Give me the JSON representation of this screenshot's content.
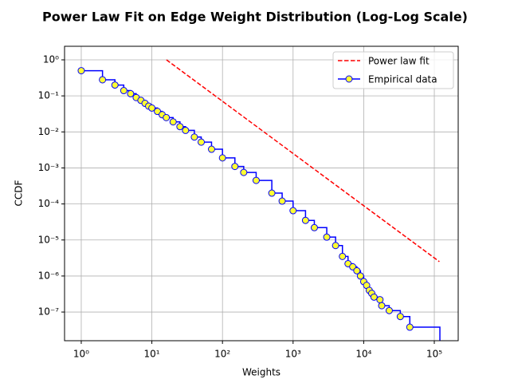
{
  "chart_data": {
    "type": "line",
    "title": "Power Law Fit on Edge Weight Distribution (Log-Log Scale)",
    "x_label": "Weights",
    "y_label": "CCDF",
    "xscale": "log",
    "yscale": "log",
    "grid": true,
    "legend_loc": "upper right",
    "xlim": [
      0.58,
      218000
    ],
    "ylim": [
      1.6e-08,
      2.38
    ],
    "xticks": [
      {
        "value": 1,
        "label": "10⁰"
      },
      {
        "value": 10,
        "label": "10¹"
      },
      {
        "value": 100,
        "label": "10²"
      },
      {
        "value": 1000,
        "label": "10³"
      },
      {
        "value": 10000,
        "label": "10⁴"
      },
      {
        "value": 100000,
        "label": "10⁵"
      }
    ],
    "yticks": [
      {
        "value": 1,
        "label": "10⁰"
      },
      {
        "value": 0.1,
        "label": "10⁻¹"
      },
      {
        "value": 0.01,
        "label": "10⁻²"
      },
      {
        "value": 0.001,
        "label": "10⁻³"
      },
      {
        "value": 0.0001,
        "label": "10⁻⁴"
      },
      {
        "value": 1e-05,
        "label": "10⁻⁵"
      },
      {
        "value": 1e-06,
        "label": "10⁻⁶"
      },
      {
        "value": 1e-07,
        "label": "10⁻⁷"
      }
    ],
    "series": [
      {
        "name": "Power law fit",
        "color": "#ff0000",
        "style": "dashed",
        "x": [
          16.1,
          118000
        ],
        "values": [
          1,
          2.5e-06
        ]
      },
      {
        "name": "Empirical data",
        "color": "#0000ff",
        "marker_color": "#ffff33",
        "style": "steps",
        "marker": true,
        "x": [
          1,
          2,
          3,
          4,
          5,
          6,
          7,
          8,
          9,
          10,
          12,
          14,
          16,
          20,
          25,
          30,
          40,
          50,
          70,
          100,
          150,
          200,
          300,
          500,
          700,
          1000,
          1500,
          2000,
          3000,
          4000,
          5000,
          6000,
          7000,
          8000,
          9000,
          10000,
          11000,
          12000,
          13000,
          14000,
          17000,
          18000,
          23000,
          33000,
          45000,
          120000
        ],
        "values": [
          0.5,
          0.28,
          0.2,
          0.14,
          0.115,
          0.09,
          0.075,
          0.062,
          0.052,
          0.046,
          0.037,
          0.03,
          0.025,
          0.019,
          0.014,
          0.011,
          0.0072,
          0.0052,
          0.0033,
          0.0019,
          0.0011,
          0.00075,
          0.00045,
          0.0002,
          0.00012,
          6.5e-05,
          3.5e-05,
          2.2e-05,
          1.2e-05,
          7e-06,
          3.5e-06,
          2.2e-06,
          1.8e-06,
          1.4e-06,
          1e-06,
          7e-07,
          5.5e-07,
          4e-07,
          3.3e-07,
          2.6e-07,
          2.2e-07,
          1.5e-07,
          1.1e-07,
          7.5e-08,
          3.8e-08,
          0
        ]
      }
    ]
  }
}
